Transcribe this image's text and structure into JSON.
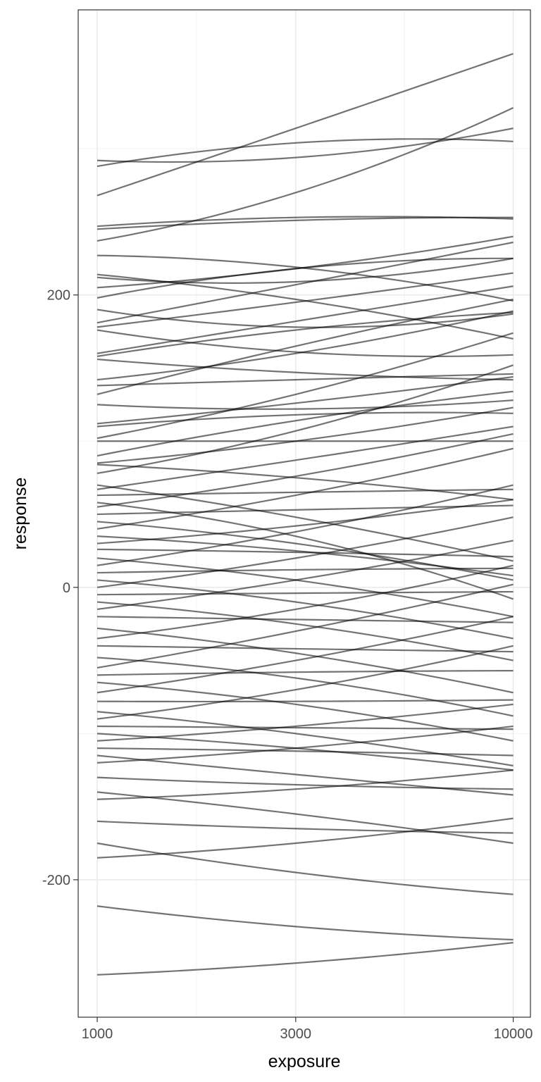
{
  "chart_data": {
    "type": "line",
    "title": "",
    "xlabel": "exposure",
    "ylabel": "response",
    "x_scale": "log10",
    "xlim": [
      900,
      11000
    ],
    "ylim": [
      -294,
      395
    ],
    "x_ticks": [
      {
        "value": 1000,
        "label": "1000"
      },
      {
        "value": 3000,
        "label": "3000"
      },
      {
        "value": 10000,
        "label": "10000"
      }
    ],
    "x_minor_ticks": [
      1732,
      5477
    ],
    "y_ticks": [
      {
        "value": -200,
        "label": "-200"
      },
      {
        "value": 0,
        "label": "0"
      },
      {
        "value": 200,
        "label": "200"
      }
    ],
    "y_minor_ticks": [
      -100,
      100,
      300
    ],
    "grid": true,
    "line_color": "#000000",
    "line_opacity": 0.55,
    "x": [
      1000,
      3000,
      10000
    ],
    "series": [
      {
        "values": [
          292,
          294,
          314
        ]
      },
      {
        "values": [
          288,
          304,
          305
        ]
      },
      {
        "values": [
          268,
          314,
          365
        ]
      },
      {
        "values": [
          247,
          253,
          252
        ]
      },
      {
        "values": [
          245,
          251,
          253
        ]
      },
      {
        "values": [
          237,
          270,
          328
        ]
      },
      {
        "values": [
          227,
          219,
          196
        ]
      },
      {
        "values": [
          214,
          197,
          170
        ]
      },
      {
        "values": [
          212,
          209,
          225
        ]
      },
      {
        "values": [
          205,
          218,
          240
        ]
      },
      {
        "values": [
          198,
          218,
          225
        ]
      },
      {
        "values": [
          190,
          178,
          187
        ]
      },
      {
        "values": [
          181,
          207,
          236
        ]
      },
      {
        "values": [
          178,
          195,
          215
        ]
      },
      {
        "values": [
          176,
          161,
          159
        ]
      },
      {
        "values": [
          160,
          182,
          206
        ]
      },
      {
        "values": [
          158,
          176,
          188
        ]
      },
      {
        "values": [
          156,
          147,
          142
        ]
      },
      {
        "values": [
          142,
          160,
          189
        ]
      },
      {
        "values": [
          138,
          142,
          146
        ]
      },
      {
        "values": [
          132,
          165,
          197
        ]
      },
      {
        "values": [
          125,
          122,
          128
        ]
      },
      {
        "values": [
          112,
          126,
          144
        ]
      },
      {
        "values": [
          110,
          118,
          119
        ]
      },
      {
        "values": [
          102,
          132,
          174
        ]
      },
      {
        "values": [
          100,
          100,
          100
        ]
      },
      {
        "values": [
          90,
          114,
          134
        ]
      },
      {
        "values": [
          85,
          100,
          123
        ]
      },
      {
        "values": [
          84,
          75,
          60
        ]
      },
      {
        "values": [
          78,
          107,
          152
        ]
      },
      {
        "values": [
          70,
          48,
          18
        ]
      },
      {
        "values": [
          67,
          87,
          110
        ]
      },
      {
        "values": [
          63,
          65,
          67
        ]
      },
      {
        "values": [
          58,
          35,
          -8
        ]
      },
      {
        "values": [
          55,
          76,
          105
        ]
      },
      {
        "values": [
          50,
          53,
          56
        ]
      },
      {
        "values": [
          45,
          30,
          5
        ]
      },
      {
        "values": [
          40,
          63,
          95
        ]
      },
      {
        "values": [
          35,
          25,
          8
        ]
      },
      {
        "values": [
          30,
          42,
          60
        ]
      },
      {
        "values": [
          26,
          24,
          21
        ]
      },
      {
        "values": [
          20,
          5,
          -20
        ]
      },
      {
        "values": [
          15,
          38,
          70
        ]
      },
      {
        "values": [
          10,
          12,
          13
        ]
      },
      {
        "values": [
          5,
          -10,
          -35
        ]
      },
      {
        "values": [
          0,
          20,
          48
        ]
      },
      {
        "values": [
          -5,
          -4,
          -3
        ]
      },
      {
        "values": [
          -10,
          -25,
          -50
        ]
      },
      {
        "values": [
          -15,
          5,
          32
        ]
      },
      {
        "values": [
          -20,
          -22,
          -24
        ]
      },
      {
        "values": [
          -28,
          -45,
          -72
        ]
      },
      {
        "values": [
          -35,
          -15,
          15
        ]
      },
      {
        "values": [
          -40,
          -42,
          -44
        ]
      },
      {
        "values": [
          -48,
          -62,
          -88
        ]
      },
      {
        "values": [
          -55,
          -30,
          2
        ]
      },
      {
        "values": [
          -60,
          -58,
          -57
        ]
      },
      {
        "values": [
          -65,
          -80,
          -105
        ]
      },
      {
        "values": [
          -72,
          -50,
          -20
        ]
      },
      {
        "values": [
          -78,
          -78,
          -77
        ]
      },
      {
        "values": [
          -85,
          -100,
          -122
        ]
      },
      {
        "values": [
          -90,
          -70,
          -40
        ]
      },
      {
        "values": [
          -95,
          -96,
          -97
        ]
      },
      {
        "values": [
          -100,
          -110,
          -125
        ]
      },
      {
        "values": [
          -105,
          -95,
          -80
        ]
      },
      {
        "values": [
          -110,
          -112,
          -115
        ]
      },
      {
        "values": [
          -115,
          -128,
          -142
        ]
      },
      {
        "values": [
          -120,
          -110,
          -95
        ]
      },
      {
        "values": [
          -130,
          -135,
          -138
        ]
      },
      {
        "values": [
          -140,
          -155,
          -175
        ]
      },
      {
        "values": [
          -145,
          -138,
          -125
        ]
      },
      {
        "values": [
          -160,
          -165,
          -168
        ]
      },
      {
        "values": [
          -175,
          -195,
          -210
        ]
      },
      {
        "values": [
          -185,
          -175,
          -158
        ]
      },
      {
        "values": [
          -218,
          -232,
          -241
        ]
      },
      {
        "values": [
          -265,
          -257,
          -243
        ]
      }
    ]
  }
}
